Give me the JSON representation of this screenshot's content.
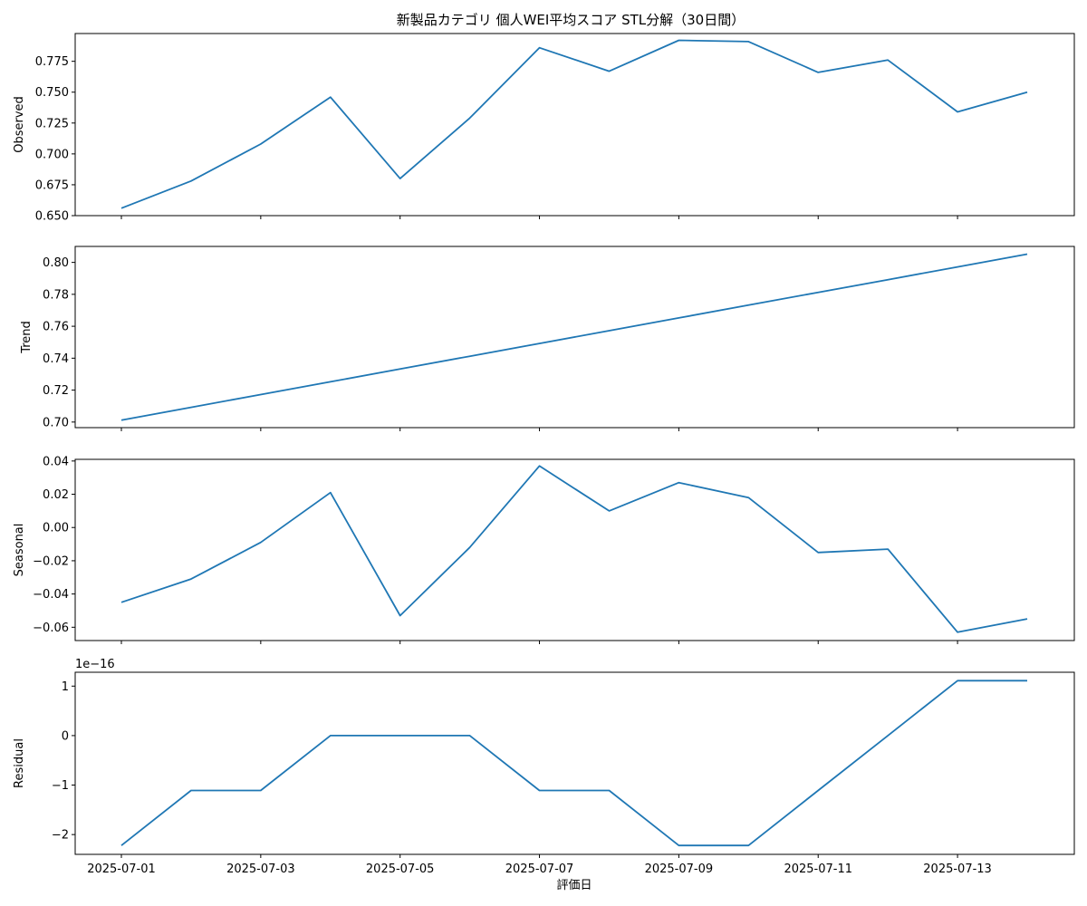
{
  "chart_data": {
    "type": "line",
    "title": "新製品カテゴリ 個人WEI平均スコア STL分解（30日間）",
    "xlabel": "評価日",
    "x": [
      "2025-07-01",
      "2025-07-02",
      "2025-07-03",
      "2025-07-04",
      "2025-07-05",
      "2025-07-06",
      "2025-07-07",
      "2025-07-08",
      "2025-07-09",
      "2025-07-10",
      "2025-07-11",
      "2025-07-12",
      "2025-07-13",
      "2025-07-14"
    ],
    "x_ticks": [
      "2025-07-01",
      "2025-07-03",
      "2025-07-05",
      "2025-07-07",
      "2025-07-09",
      "2025-07-11",
      "2025-07-13"
    ],
    "line_color": "#1f77b4",
    "grid": false,
    "panels": [
      {
        "ylabel": "Observed",
        "values": [
          0.656,
          0.678,
          0.708,
          0.746,
          0.68,
          0.729,
          0.786,
          0.767,
          0.792,
          0.791,
          0.766,
          0.776,
          0.734,
          0.75
        ],
        "ylim": [
          0.65,
          0.7975
        ],
        "yticks": [
          "0.650",
          "0.675",
          "0.700",
          "0.725",
          "0.750",
          "0.775"
        ]
      },
      {
        "ylabel": "Trend",
        "values": [
          0.7012,
          0.7092,
          0.7172,
          0.7252,
          0.7332,
          0.7412,
          0.7492,
          0.7572,
          0.7652,
          0.7732,
          0.7812,
          0.7892,
          0.7972,
          0.8052
        ],
        "ylim": [
          0.6965,
          0.81
        ],
        "yticks": [
          "0.70",
          "0.72",
          "0.74",
          "0.76",
          "0.78",
          "0.80"
        ]
      },
      {
        "ylabel": "Seasonal",
        "values": [
          -0.045,
          -0.031,
          -0.009,
          0.021,
          -0.053,
          -0.012,
          0.037,
          0.01,
          0.027,
          0.018,
          -0.015,
          -0.013,
          -0.063,
          -0.055
        ],
        "ylim": [
          -0.068,
          0.041
        ],
        "yticks": [
          "−0.06",
          "−0.04",
          "−0.02",
          "0.00",
          "0.02",
          "0.04"
        ]
      },
      {
        "ylabel": "Residual",
        "offset_label": "1e−16",
        "values": [
          -2.22,
          -1.11,
          -1.11,
          0.0,
          0.0,
          0.0,
          -1.11,
          -1.11,
          -2.22,
          -2.22,
          -1.11,
          0.0,
          1.11,
          1.11
        ],
        "ylim": [
          -2.4,
          1.28
        ],
        "yticks": [
          "−2",
          "−1",
          "0",
          "1"
        ]
      }
    ]
  }
}
